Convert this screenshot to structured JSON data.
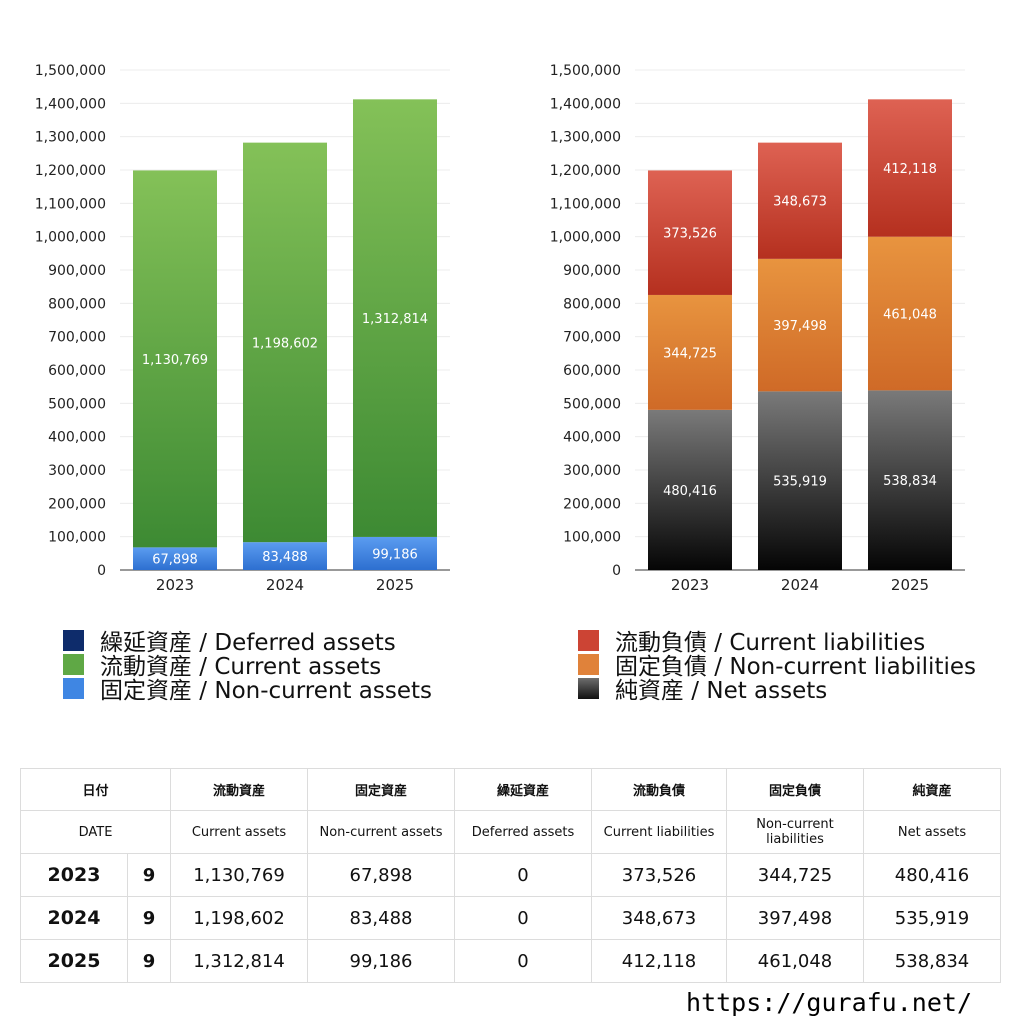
{
  "chart_data": [
    {
      "type": "bar",
      "stacked": true,
      "categories": [
        "2023",
        "2024",
        "2025"
      ],
      "ylim": [
        0,
        1500000
      ],
      "ticks": [
        "0",
        "100,000",
        "200,000",
        "300,000",
        "400,000",
        "500,000",
        "600,000",
        "700,000",
        "800,000",
        "900,000",
        "1,000,000",
        "1,100,000",
        "1,200,000",
        "1,300,000",
        "1,400,000",
        "1,500,000"
      ],
      "grid": true,
      "legend_position": "bottom",
      "series": [
        {
          "name": "固定資産 / Non-current assets",
          "values": [
            67898,
            83488,
            99186
          ],
          "labels": [
            "67,898",
            "83,488",
            "99,186"
          ],
          "color_top": "#5b9cf0",
          "color_bottom": "#2d6fd0"
        },
        {
          "name": "流動資産 / Current assets",
          "values": [
            1130769,
            1198602,
            1312814
          ],
          "labels": [
            "1,130,769",
            "1,198,602",
            "1,312,814"
          ],
          "color_top": "#84c158",
          "color_bottom": "#3d8a33"
        },
        {
          "name": "繰延資産 / Deferred assets",
          "values": [
            0,
            0,
            0
          ],
          "labels": [
            "",
            "",
            ""
          ],
          "color_top": "#0e2c6b",
          "color_bottom": "#0e2c6b"
        }
      ]
    },
    {
      "type": "bar",
      "stacked": true,
      "categories": [
        "2023",
        "2024",
        "2025"
      ],
      "ylim": [
        0,
        1500000
      ],
      "ticks": [
        "0",
        "100,000",
        "200,000",
        "300,000",
        "400,000",
        "500,000",
        "600,000",
        "700,000",
        "800,000",
        "900,000",
        "1,000,000",
        "1,100,000",
        "1,200,000",
        "1,300,000",
        "1,400,000",
        "1,500,000"
      ],
      "grid": true,
      "legend_position": "bottom",
      "series": [
        {
          "name": "純資産 / Net assets",
          "values": [
            480416,
            535919,
            538834
          ],
          "labels": [
            "480,416",
            "535,919",
            "538,834"
          ],
          "color_top": "#7a7a7a",
          "color_bottom": "#050505"
        },
        {
          "name": "固定負債 / Non-current liabilities",
          "values": [
            344725,
            397498,
            461048
          ],
          "labels": [
            "344,725",
            "397,498",
            "461,048"
          ],
          "color_top": "#e8943f",
          "color_bottom": "#cf6a27"
        },
        {
          "name": "流動負債 / Current liabilities",
          "values": [
            373526,
            348673,
            412118
          ],
          "labels": [
            "373,526",
            "348,673",
            "412,118"
          ],
          "color_top": "#de6253",
          "color_bottom": "#b5301f"
        }
      ]
    }
  ],
  "legends": {
    "assets": [
      {
        "label": "繰延資産 / Deferred assets",
        "color": "#0e2c6b"
      },
      {
        "label": "流動資産 / Current assets",
        "color": "#5fa845"
      },
      {
        "label": "固定資産 / Non-current assets",
        "color": "#3f86e3"
      }
    ],
    "liabilities": [
      {
        "label": "流動負債 / Current liabilities",
        "color": "#cc4434"
      },
      {
        "label": "固定負債 / Non-current liabilities",
        "color": "#e0823a"
      },
      {
        "label": "純資産 / Net assets",
        "color": "#3a3a3a"
      }
    ]
  },
  "table": {
    "header_jp": [
      "日付",
      "流動資産",
      "固定資産",
      "繰延資産",
      "流動負債",
      "固定負債",
      "純資産"
    ],
    "header_en": [
      "DATE",
      "Current assets",
      "Non-current assets",
      "Deferred assets",
      "Current liabilities",
      "Non-current liabilities",
      "Net assets"
    ],
    "rows": [
      {
        "year": "2023",
        "month": "9",
        "values": [
          "1,130,769",
          "67,898",
          "0",
          "373,526",
          "344,725",
          "480,416"
        ]
      },
      {
        "year": "2024",
        "month": "9",
        "values": [
          "1,198,602",
          "83,488",
          "0",
          "348,673",
          "397,498",
          "535,919"
        ]
      },
      {
        "year": "2025",
        "month": "9",
        "values": [
          "1,312,814",
          "99,186",
          "0",
          "412,118",
          "461,048",
          "538,834"
        ]
      }
    ]
  },
  "footer": {
    "url": "https://gurafu.net/"
  }
}
